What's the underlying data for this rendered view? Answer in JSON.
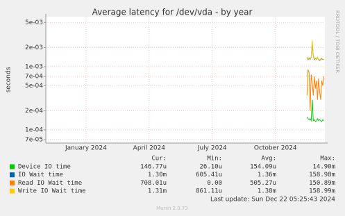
{
  "chart_data": {
    "type": "line",
    "title": "Average latency for /dev/vda - by year",
    "y_label": "seconds",
    "side_label": "RRDTOOL / TOBI OETIKER",
    "log_y": true,
    "grid": true,
    "xlim": [
      -1.91,
      11.35
    ],
    "xticks": [
      {
        "value": 0,
        "label": "January 2024"
      },
      {
        "value": 3,
        "label": "April 2024"
      },
      {
        "value": 6,
        "label": "July 2024"
      },
      {
        "value": 9,
        "label": "October 2024"
      }
    ],
    "ylim": [
      6.18e-05,
      0.00618
    ],
    "yticks": [
      {
        "value": 0.005,
        "label": "5e-03"
      },
      {
        "value": 0.002,
        "label": "2e-03"
      },
      {
        "value": 0.001,
        "label": "1e-03"
      },
      {
        "value": 0.0007,
        "label": "7e-04"
      },
      {
        "value": 0.0005,
        "label": "5e-04"
      },
      {
        "value": 0.0002,
        "label": "2e-04"
      },
      {
        "value": 0.0001,
        "label": "1e-04"
      },
      {
        "value": 7e-05,
        "label": "7e-05"
      }
    ],
    "x": [
      10.5,
      10.55,
      10.6,
      10.65,
      10.7,
      10.75,
      10.8,
      10.85,
      10.9,
      10.95,
      11.0,
      11.05,
      11.1,
      11.15,
      11.2,
      11.25,
      11.3
    ],
    "stat_headers": [
      "Cur:",
      "Min:",
      "Avg:",
      "Max:"
    ],
    "series": [
      {
        "name": "Device IO time",
        "color": "#00cc00",
        "stats": [
          "146.77u",
          "26.10u",
          "154.09u",
          "14.90m"
        ],
        "values": [
          0.00016,
          0.00015,
          0.000145,
          0.00015,
          0.00014,
          0.0003,
          0.00014,
          0.000145,
          0.000135,
          0.00014,
          0.00015,
          0.00014,
          0.000145,
          0.00014,
          0.000135,
          0.000145,
          0.00014
        ]
      },
      {
        "name": "IO Wait time",
        "color": "#0066b3",
        "stats": [
          "1.30m",
          "605.41u",
          "1.36m",
          "158.98m"
        ],
        "values": [
          0.0014,
          0.0013,
          0.00135,
          0.0013,
          0.0014,
          0.0024,
          0.0015,
          0.0013,
          0.00135,
          0.0013,
          0.0014,
          0.0013,
          0.00125,
          0.0013,
          0.00135,
          0.0013,
          0.0013
        ]
      },
      {
        "name": "Read IO Wait time",
        "color": "#ff8000",
        "stats": [
          "708.01u",
          "0.00",
          "505.27u",
          "150.89m"
        ],
        "values": [
          0.00035,
          0.0009,
          0.0008,
          0.0002,
          0.00075,
          0.00055,
          0.00035,
          0.0007,
          0.00045,
          0.0006,
          0.0003,
          0.00065,
          0.0004,
          0.0003,
          0.0006,
          0.0005,
          0.0007
        ]
      },
      {
        "name": "Write IO Wait time",
        "color": "#ffcc00",
        "stats": [
          "1.31m",
          "861.11u",
          "1.38m",
          "158.99m"
        ],
        "values": [
          0.00142,
          0.00132,
          0.00138,
          0.00131,
          0.00142,
          0.0026,
          0.00155,
          0.00132,
          0.00137,
          0.00131,
          0.00142,
          0.00131,
          0.00127,
          0.00132,
          0.00137,
          0.00131,
          0.00131
        ]
      }
    ],
    "last_update": "Last update: Sun Dec 22 05:25:43 2024",
    "version": "Munin 2.0.73"
  }
}
